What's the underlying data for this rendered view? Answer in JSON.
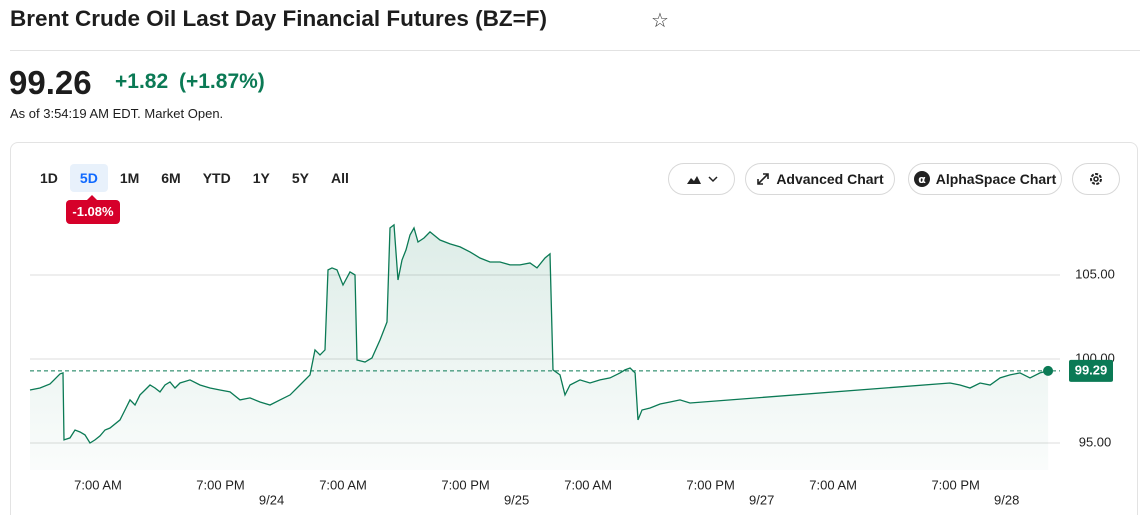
{
  "header": {
    "title": "Brent Crude Oil Last Day Financial Futures (BZ=F)",
    "price": "99.26",
    "change": "+1.82",
    "change_percent": "(+1.87%)",
    "as_of": "As of 3:54:19 AM EDT. Market Open."
  },
  "toolbar": {
    "ranges": [
      "1D",
      "5D",
      "1M",
      "6M",
      "YTD",
      "1Y",
      "5Y",
      "All"
    ],
    "selected_range": "5D",
    "range_change": "-1.08%",
    "advanced_chart": "Advanced Chart",
    "alphaspace_chart": "AlphaSpace Chart"
  },
  "chart_data": {
    "type": "line",
    "color": "#0b7a55",
    "x": [
      -6.66,
      -5.68,
      -4.7,
      -3.72,
      -3.43,
      -3.33,
      -2.74,
      -2.25,
      -1.76,
      -1.27,
      -0.78,
      -0.29,
      0.2,
      0.69,
      1.18,
      2.15,
      2.64,
      3.13,
      3.62,
      4.11,
      4.6,
      5.09,
      5.58,
      6.07,
      6.56,
      7.05,
      7.54,
      8.03,
      9.01,
      9.99,
      10.97,
      11.95,
      12.93,
      13.91,
      14.89,
      15.87,
      16.85,
      17.83,
      18.81,
      19.78,
      20.76,
      21.25,
      21.74,
      22.23,
      22.53,
      22.92,
      23.41,
      24.0,
      24.68,
      25.17,
      25.37,
      26.15,
      26.84,
      27.62,
      28.31,
      28.6,
      28.99,
      29.38,
      29.77,
      30.17,
      30.56,
      30.95,
      31.34,
      31.93,
      32.52,
      33.5,
      34.48,
      35.46,
      36.43,
      37.41,
      38.39,
      39.37,
      40.35,
      41.33,
      42.31,
      43.0,
      43.78,
      44.27,
      44.56,
      45.25,
      45.74,
      46.23,
      47.21,
      48.19,
      49.17,
      50.15,
      51.13,
      51.62,
      52.11,
      52.6,
      52.89,
      53.28,
      54.07,
      55.05,
      56.03,
      57.0,
      57.98,
      83.45,
      84.43,
      85.41,
      86.39,
      87.37,
      88.35,
      89.32,
      90.3,
      91.28,
      92.26,
      93.05
    ],
    "values": [
      98.15,
      98.27,
      98.51,
      99.11,
      99.17,
      95.18,
      95.3,
      95.77,
      95.65,
      95.48,
      95.0,
      95.18,
      95.42,
      95.77,
      95.89,
      96.37,
      96.96,
      97.56,
      97.26,
      97.86,
      98.15,
      98.45,
      98.27,
      98.04,
      98.45,
      98.63,
      98.27,
      98.57,
      98.75,
      98.45,
      98.27,
      98.15,
      98.04,
      97.56,
      97.68,
      97.44,
      97.26,
      97.56,
      97.86,
      98.45,
      99.05,
      100.54,
      100.24,
      100.54,
      105.3,
      105.42,
      105.3,
      104.4,
      105.18,
      105.0,
      99.94,
      99.82,
      100.06,
      101.13,
      102.2,
      107.8,
      107.98,
      104.7,
      105.89,
      106.49,
      107.38,
      107.8,
      106.96,
      107.2,
      107.56,
      107.08,
      106.85,
      106.67,
      106.37,
      106.01,
      105.77,
      105.77,
      105.6,
      105.6,
      105.71,
      105.42,
      106.01,
      106.25,
      99.35,
      99.05,
      97.86,
      98.45,
      98.75,
      98.57,
      98.75,
      98.87,
      99.17,
      99.35,
      99.46,
      99.17,
      96.37,
      96.96,
      97.08,
      97.32,
      97.44,
      97.56,
      97.38,
      98.57,
      98.45,
      98.27,
      98.57,
      98.45,
      98.87,
      99.05,
      99.17,
      98.87,
      99.17,
      99.29
    ],
    "xlim": [
      -6.66,
      94.22
    ],
    "ylim": [
      93.39,
      108.27
    ],
    "yticks": [
      {
        "value": 95,
        "label": "95.00"
      },
      {
        "value": 100,
        "label": "100.00"
      },
      {
        "value": 105,
        "label": "105.00"
      }
    ],
    "xticks": [
      {
        "value": 0,
        "label": "7:00 AM"
      },
      {
        "value": 12,
        "label": "7:00 PM"
      },
      {
        "value": 24,
        "label": "7:00 AM"
      },
      {
        "value": 36,
        "label": "7:00 PM"
      },
      {
        "value": 48,
        "label": "7:00 AM"
      },
      {
        "value": 60,
        "label": "7:00 PM"
      },
      {
        "value": 72,
        "label": "7:00 AM"
      },
      {
        "value": 84,
        "label": "7:00 PM"
      }
    ],
    "date_ticks": [
      {
        "value": 17,
        "label": "9/24"
      },
      {
        "value": 41,
        "label": "9/25"
      },
      {
        "value": 65,
        "label": "9/27"
      },
      {
        "value": 89,
        "label": "9/28"
      }
    ],
    "last_price": {
      "value": 99.29,
      "label": "99.29"
    },
    "grid": true
  }
}
